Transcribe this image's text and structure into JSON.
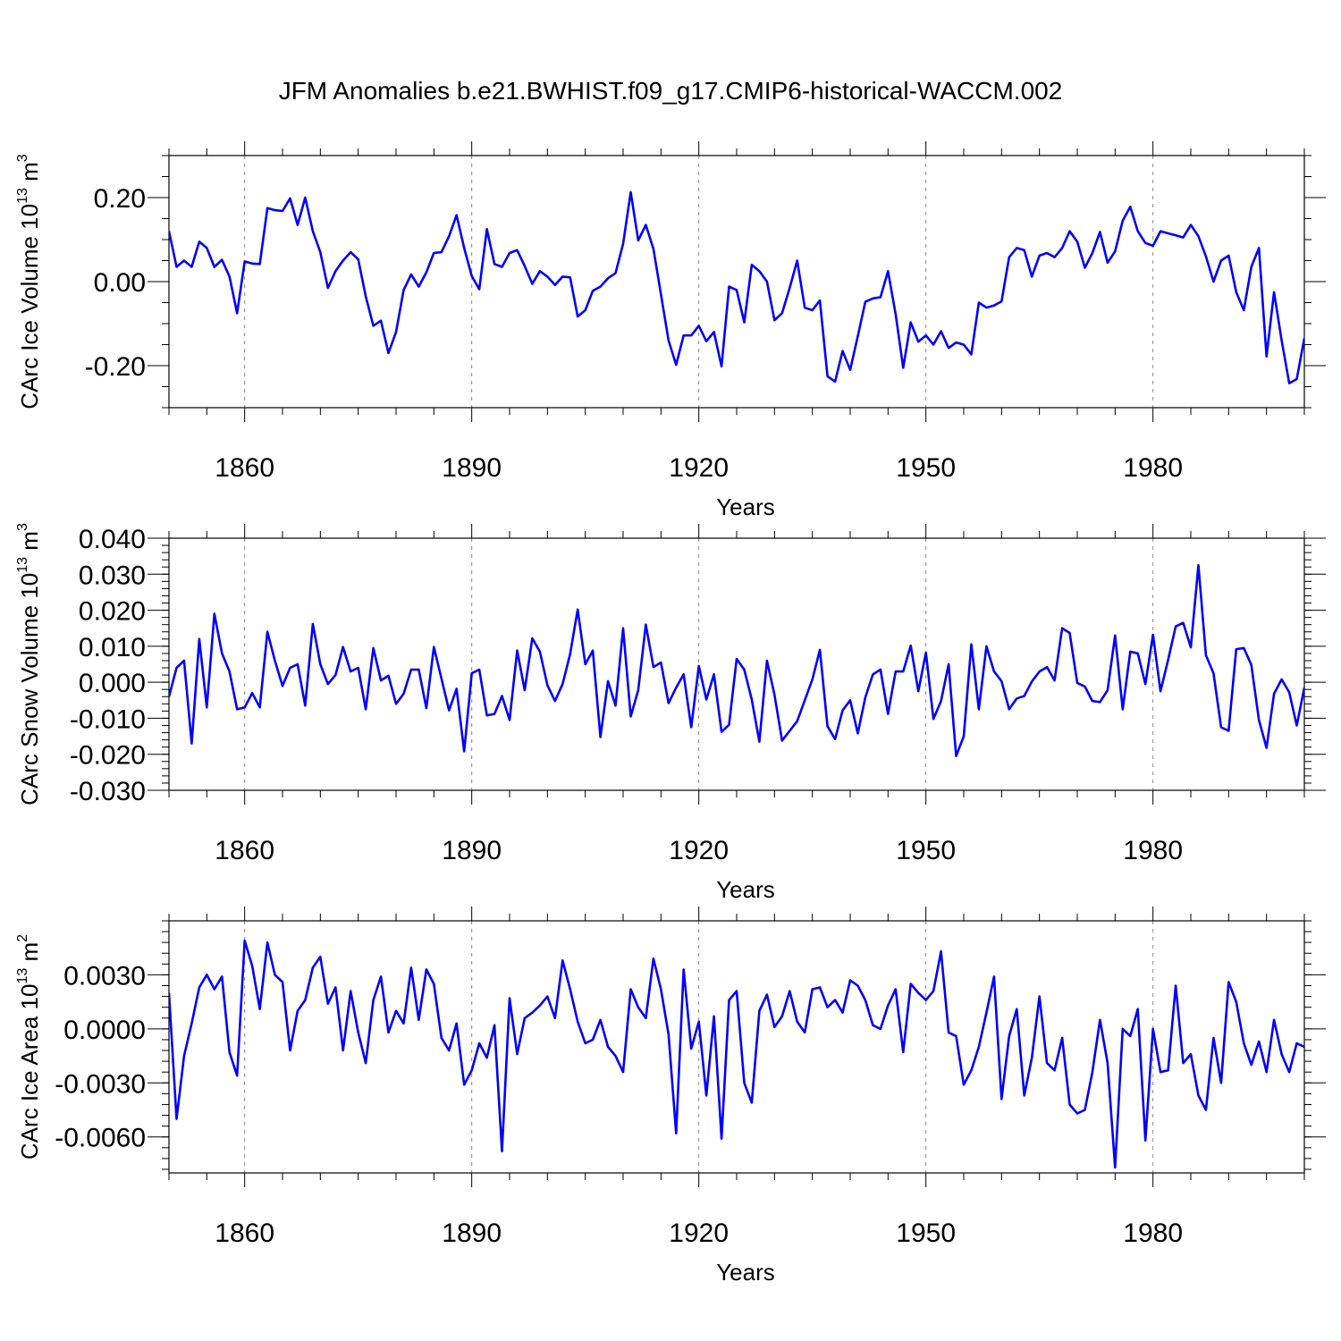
{
  "title": "JFM Anomalies b.e21.BWHIST.f09_g17.CMIP6-historical-WACCM.002",
  "chart_data": [
    {
      "type": "line",
      "ylabel": "CArc Ice Volume 10",
      "ylabel_exp": "13",
      "ylabel_unit": " m",
      "ylabel_unit_exp": "3",
      "xlabel": "Years",
      "xlim": [
        1850,
        2000
      ],
      "ylim": [
        -0.3,
        0.3
      ],
      "xticks": [
        1860,
        1890,
        1920,
        1950,
        1980
      ],
      "xtick_labels": [
        "1860",
        "1890",
        "1920",
        "1950",
        "1980"
      ],
      "yticks": [
        0.2,
        0.0,
        -0.2
      ],
      "ytick_labels": [
        "0.20",
        "0.00",
        "-0.20"
      ],
      "yminor_step": 0.05,
      "x_start": 1850,
      "values": [
        0.12,
        0.035,
        0.05,
        0.035,
        0.095,
        0.08,
        0.035,
        0.052,
        0.012,
        -0.075,
        0.048,
        0.043,
        0.042,
        0.175,
        0.17,
        0.168,
        0.198,
        0.135,
        0.2,
        0.12,
        0.07,
        -0.015,
        0.025,
        0.05,
        0.07,
        0.053,
        -0.035,
        -0.105,
        -0.093,
        -0.17,
        -0.12,
        -0.02,
        0.017,
        -0.012,
        0.022,
        0.068,
        0.07,
        0.108,
        0.158,
        0.08,
        0.013,
        -0.018,
        0.125,
        0.042,
        0.035,
        0.068,
        0.075,
        0.037,
        -0.005,
        0.025,
        0.012,
        -0.008,
        0.012,
        0.01,
        -0.083,
        -0.068,
        -0.022,
        -0.012,
        0.008,
        0.02,
        0.09,
        0.213,
        0.098,
        0.135,
        0.078,
        -0.03,
        -0.14,
        -0.198,
        -0.128,
        -0.128,
        -0.105,
        -0.142,
        -0.12,
        -0.202,
        -0.012,
        -0.02,
        -0.097,
        0.04,
        0.025,
        0.0,
        -0.092,
        -0.075,
        -0.015,
        0.05,
        -0.062,
        -0.068,
        -0.045,
        -0.225,
        -0.238,
        -0.165,
        -0.21,
        -0.13,
        -0.048,
        -0.04,
        -0.037,
        0.025,
        -0.077,
        -0.205,
        -0.097,
        -0.143,
        -0.128,
        -0.15,
        -0.118,
        -0.158,
        -0.145,
        -0.15,
        -0.173,
        -0.05,
        -0.062,
        -0.057,
        -0.047,
        0.058,
        0.08,
        0.075,
        0.012,
        0.062,
        0.068,
        0.058,
        0.08,
        0.12,
        0.095,
        0.033,
        0.068,
        0.118,
        0.045,
        0.072,
        0.145,
        0.178,
        0.12,
        0.092,
        0.085,
        0.12,
        0.115,
        0.11,
        0.105,
        0.135,
        0.108,
        0.06,
        0.0,
        0.05,
        0.062,
        -0.025,
        -0.068,
        0.035,
        0.08,
        -0.178,
        -0.025,
        -0.14,
        -0.242,
        -0.232,
        -0.135
      ]
    },
    {
      "type": "line",
      "ylabel": "CArc Snow Volume 10",
      "ylabel_exp": "13",
      "ylabel_unit": " m",
      "ylabel_unit_exp": "3",
      "xlabel": "Years",
      "xlim": [
        1850,
        2000
      ],
      "ylim": [
        -0.03,
        0.04
      ],
      "xticks": [
        1860,
        1890,
        1920,
        1950,
        1980
      ],
      "xtick_labels": [
        "1860",
        "1890",
        "1920",
        "1950",
        "1980"
      ],
      "yticks": [
        0.04,
        0.03,
        0.02,
        0.01,
        0.0,
        -0.01,
        -0.02,
        -0.03
      ],
      "ytick_labels": [
        "0.040",
        "0.030",
        "0.020",
        "0.010",
        "0.000",
        "-0.010",
        "-0.020",
        "-0.030"
      ],
      "yminor_step": 0.002,
      "x_start": 1850,
      "values": [
        -0.004,
        0.004,
        0.006,
        -0.017,
        0.012,
        -0.007,
        0.019,
        0.008,
        0.003,
        -0.0075,
        -0.007,
        -0.003,
        -0.007,
        0.014,
        0.006,
        -0.001,
        0.004,
        0.005,
        -0.0065,
        0.0162,
        0.005,
        -0.0005,
        0.002,
        0.0098,
        0.003,
        0.004,
        -0.0075,
        0.0095,
        0.0005,
        0.0018,
        -0.006,
        -0.0032,
        0.0035,
        0.0035,
        -0.0072,
        0.0098,
        0.001,
        -0.0078,
        -0.0018,
        -0.0192,
        0.0025,
        0.0035,
        -0.0092,
        -0.0088,
        -0.0038,
        -0.0105,
        0.0088,
        -0.0022,
        0.0122,
        0.0085,
        -0.0008,
        -0.0052,
        -0.0005,
        0.0078,
        0.0202,
        0.005,
        0.0088,
        -0.0152,
        0.0003,
        -0.0065,
        0.015,
        -0.0095,
        -0.0022,
        0.016,
        0.0042,
        0.0055,
        -0.0058,
        -0.0015,
        0.0022,
        -0.0125,
        0.0045,
        -0.0048,
        0.0022,
        -0.0138,
        -0.0118,
        0.0065,
        0.0035,
        -0.0048,
        -0.0165,
        0.006,
        -0.0035,
        -0.0162,
        -0.0135,
        -0.0108,
        -0.005,
        0.0008,
        0.009,
        -0.0122,
        -0.0158,
        -0.0078,
        -0.005,
        -0.0142,
        -0.0042,
        0.0022,
        0.0035,
        -0.0088,
        0.003,
        0.003,
        0.0102,
        -0.0025,
        0.0082,
        -0.0102,
        -0.0052,
        0.005,
        -0.0205,
        -0.015,
        0.0105,
        -0.0075,
        0.01,
        0.003,
        0.0003,
        -0.0075,
        -0.0045,
        -0.0038,
        0.0002,
        0.003,
        0.0042,
        0.0005,
        0.015,
        0.0137,
        -0.0002,
        -0.0012,
        -0.0052,
        -0.0055,
        -0.0022,
        0.013,
        -0.0075,
        0.0085,
        0.008,
        -0.0005,
        0.0132,
        -0.0025,
        0.0062,
        0.0155,
        0.0165,
        0.0097,
        0.0325,
        0.0075,
        0.0025,
        -0.0125,
        -0.0135,
        0.0092,
        0.0095,
        0.0048,
        -0.0105,
        -0.0182,
        -0.0032,
        0.0008,
        -0.0028,
        -0.012,
        -0.0015
      ]
    },
    {
      "type": "line",
      "ylabel": "CArc Ice Area 10",
      "ylabel_exp": "13",
      "ylabel_unit": " m",
      "ylabel_unit_exp": "2",
      "xlabel": "Years",
      "xlim": [
        1850,
        2000
      ],
      "ylim": [
        -0.008,
        0.006
      ],
      "xticks": [
        1860,
        1890,
        1920,
        1950,
        1980
      ],
      "xtick_labels": [
        "1860",
        "1890",
        "1920",
        "1950",
        "1980"
      ],
      "yticks": [
        0.003,
        0.0,
        -0.003,
        -0.006
      ],
      "ytick_labels": [
        "0.0030",
        "0.0000",
        "-0.0030",
        "-0.0060"
      ],
      "yminor_step": 0.0006,
      "x_start": 1850,
      "values": [
        0.002,
        -0.005,
        -0.0015,
        0.0003,
        0.0023,
        0.003,
        0.0022,
        0.0029,
        -0.0013,
        -0.0026,
        0.0049,
        0.0035,
        0.0011,
        0.0048,
        0.003,
        0.0026,
        -0.0012,
        0.001,
        0.0016,
        0.0034,
        0.004,
        0.0014,
        0.0023,
        -0.0012,
        0.0021,
        -0.0002,
        -0.0019,
        0.0016,
        0.0029,
        -0.0002,
        0.001,
        0.0003,
        0.0034,
        0.0005,
        0.0033,
        0.0025,
        -0.0005,
        -0.0012,
        0.0003,
        -0.0031,
        -0.0023,
        -0.0008,
        -0.0016,
        0.0002,
        -0.0068,
        0.0017,
        -0.0014,
        0.0006,
        0.0009,
        0.0013,
        0.0018,
        0.0006,
        0.0038,
        0.0022,
        0.0004,
        -0.0008,
        -0.0006,
        0.0005,
        -0.001,
        -0.0015,
        -0.0024,
        0.0022,
        0.0012,
        0.0006,
        0.0039,
        0.0022,
        -0.0003,
        -0.0058,
        0.0033,
        -0.0011,
        0.0004,
        -0.0037,
        0.0007,
        -0.0061,
        0.0016,
        0.0021,
        -0.003,
        -0.0041,
        0.001,
        0.0019,
        0.0001,
        0.0007,
        0.0021,
        0.0004,
        -0.0002,
        0.0022,
        0.0023,
        0.0012,
        0.0016,
        0.0009,
        0.0027,
        0.0024,
        0.0016,
        0.0002,
        0.0,
        0.0013,
        0.0022,
        -0.0013,
        0.0025,
        0.002,
        0.0016,
        0.0021,
        0.0043,
        -0.0002,
        -0.0004,
        -0.0031,
        -0.0023,
        -0.001,
        0.0009,
        0.0029,
        -0.0039,
        -0.0004,
        0.0011,
        -0.0037,
        -0.0016,
        0.0018,
        -0.0019,
        -0.0023,
        -0.0005,
        -0.0042,
        -0.0047,
        -0.0045,
        -0.0024,
        0.0005,
        -0.0019,
        -0.0077,
        0.0,
        -0.0004,
        0.0011,
        -0.0062,
        0.0,
        -0.0024,
        -0.0023,
        0.0024,
        -0.0019,
        -0.0014,
        -0.0037,
        -0.0045,
        -0.0005,
        -0.003,
        0.0026,
        0.0015,
        -0.0008,
        -0.002,
        -0.0007,
        -0.0024,
        0.0005,
        -0.0014,
        -0.0024,
        -0.0008,
        -0.001
      ]
    }
  ]
}
